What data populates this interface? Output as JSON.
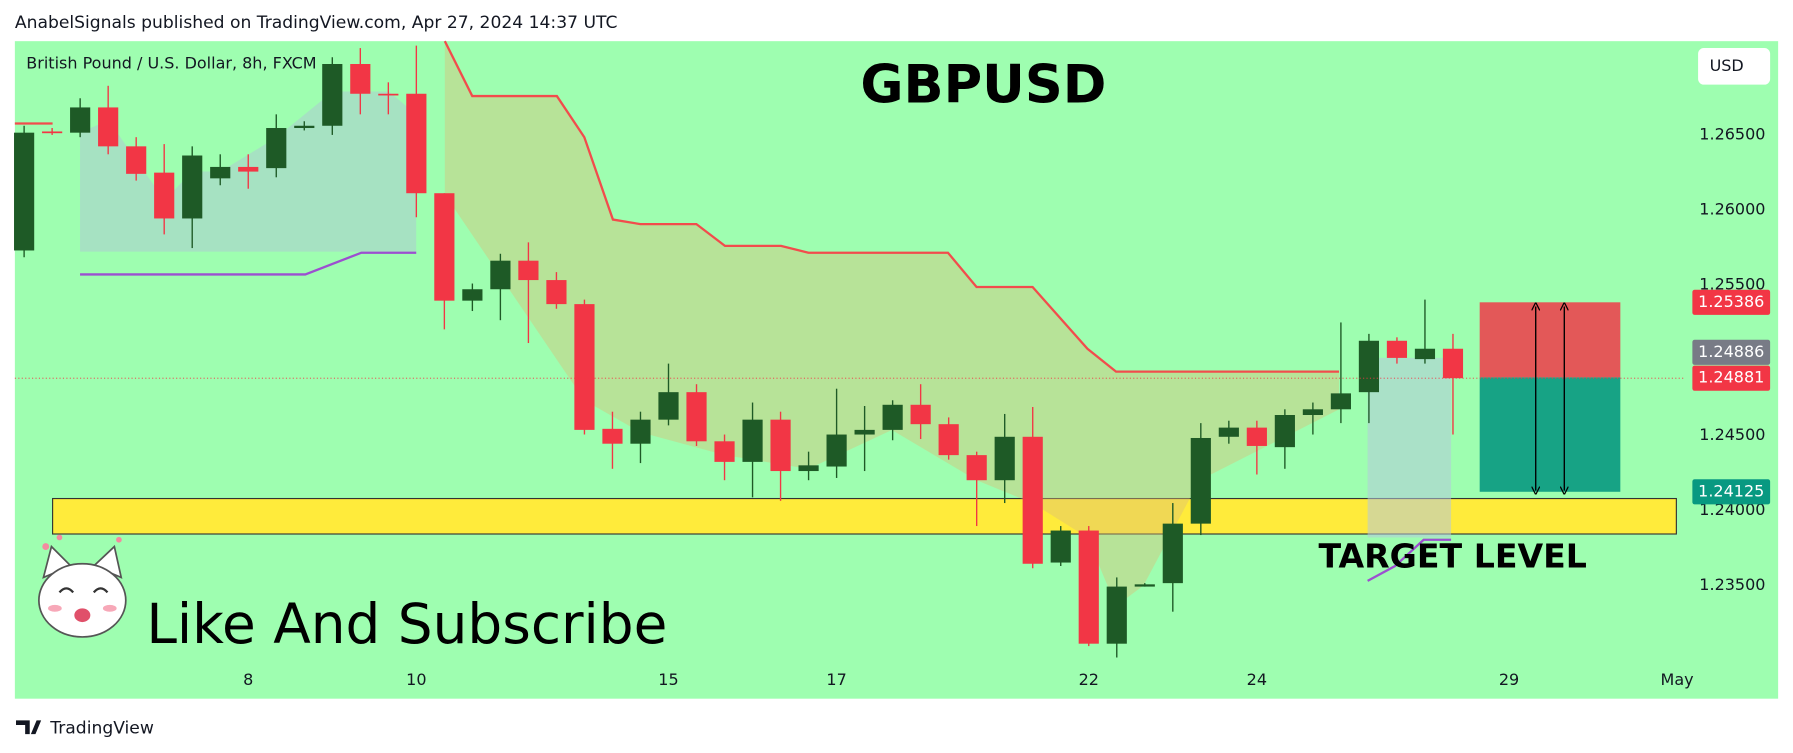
{
  "header": "AnabelSignals published on TradingView.com, Apr 27, 2024 14:37 UTC",
  "footer": "TradingView",
  "chart_data": {
    "type": "candlestick",
    "symbol": "British Pound / U.S. Dollar, 8h, FXCM",
    "title": "GBPUSD",
    "currency": "USD",
    "annotations": [
      "TARGET LEVEL",
      "Like And Subscribe"
    ],
    "up_color": "#1e5a26",
    "down_color": "#f23645",
    "open": [
      1.25731,
      1.26523,
      1.26515,
      1.26683,
      1.26424,
      1.26249,
      1.25944,
      1.26211,
      1.26287,
      1.26279,
      1.26546,
      1.26561,
      1.26972,
      1.26774,
      1.26774,
      1.26112,
      1.25397,
      1.25473,
      1.25663,
      1.25534,
      1.25374,
      1.24544,
      1.24445,
      1.24605,
      1.24788,
      1.24461,
      1.24324,
      1.24605,
      1.24263,
      1.24293,
      1.24506,
      1.24537,
      1.24704,
      1.24575,
      1.24369,
      1.24202,
      1.24491,
      1.23654,
      1.23867,
      1.23114,
      1.23494,
      1.23517,
      1.23913,
      1.24491,
      1.24552,
      1.24422,
      1.24636,
      1.24674,
      1.24788,
      1.2513,
      1.25008,
      1.25077
    ],
    "high": [
      1.26561,
      1.26546,
      1.26744,
      1.26827,
      1.26485,
      1.26439,
      1.26424,
      1.26371,
      1.26371,
      1.26637,
      1.26591,
      1.27017,
      1.27078,
      1.2685,
      1.27094,
      1.26112,
      1.25511,
      1.25709,
      1.25785,
      1.25587,
      1.25404,
      1.24658,
      1.24658,
      1.24978,
      1.24841,
      1.24506,
      1.24719,
      1.24658,
      1.24392,
      1.24811,
      1.24696,
      1.24734,
      1.24841,
      1.2462,
      1.24392,
      1.24643,
      1.24689,
      1.23897,
      1.23897,
      1.23555,
      1.23517,
      1.2405,
      1.24582,
      1.24598,
      1.24598,
      1.24674,
      1.24719,
      1.25252,
      1.25176,
      1.25153,
      1.25404,
      1.25176
    ],
    "low": [
      1.25686,
      1.265,
      1.26485,
      1.26371,
      1.26196,
      1.25838,
      1.25747,
      1.26165,
      1.26142,
      1.26218,
      1.2653,
      1.265,
      1.26637,
      1.26637,
      1.25952,
      1.25206,
      1.25328,
      1.25267,
      1.25115,
      1.25343,
      1.24506,
      1.24278,
      1.24316,
      1.24567,
      1.2443,
      1.24202,
      1.24088,
      1.24065,
      1.24202,
      1.24217,
      1.24263,
      1.24468,
      1.24476,
      1.24339,
      1.23897,
      1.2405,
      1.23616,
      1.23631,
      1.23098,
      1.23022,
      1.23494,
      1.23327,
      1.23837,
      1.24445,
      1.2424,
      1.24278,
      1.24506,
      1.24582,
      1.24582,
      1.24978,
      1.24978,
      1.24506
    ],
    "close": [
      1.26515,
      1.26515,
      1.26683,
      1.26424,
      1.26241,
      1.25944,
      1.26363,
      1.26287,
      1.26256,
      1.26546,
      1.26561,
      1.26972,
      1.26774,
      1.26766,
      1.26112,
      1.25397,
      1.25473,
      1.25663,
      1.25534,
      1.25374,
      1.24537,
      1.24445,
      1.24605,
      1.24788,
      1.24461,
      1.24324,
      1.24605,
      1.24263,
      1.24301,
      1.24506,
      1.24537,
      1.24704,
      1.24575,
      1.24369,
      1.24202,
      1.24491,
      1.23646,
      1.23867,
      1.23114,
      1.23494,
      1.23509,
      1.23913,
      1.24483,
      1.24552,
      1.2443,
      1.24636,
      1.24674,
      1.2478,
      1.2513,
      1.25016,
      1.25077,
      1.24881
    ],
    "xlim": [
      -0.33,
      59.3
    ],
    "xticks": [
      {
        "value": 8,
        "label": "8"
      },
      {
        "value": 14,
        "label": "10"
      },
      {
        "value": 23,
        "label": "15"
      },
      {
        "value": 29,
        "label": "17"
      },
      {
        "value": 38,
        "label": "22"
      },
      {
        "value": 44,
        "label": "24"
      },
      {
        "value": 53,
        "label": "29"
      },
      {
        "value": 59,
        "label": "May"
      }
    ],
    "ylim": [
      1.22748,
      1.27124
    ],
    "yticks": [
      {
        "value": 1.265,
        "label": "1.26500"
      },
      {
        "value": 1.26,
        "label": "1.26000"
      },
      {
        "value": 1.255,
        "label": "1.25500"
      },
      {
        "value": 1.245,
        "label": "1.24500"
      },
      {
        "value": 1.24,
        "label": "1.24000"
      },
      {
        "value": 1.235,
        "label": "1.23500"
      }
    ],
    "grid": false,
    "zone": [
      1.23844,
      1.2408
    ],
    "position": {
      "stop": 1.25386,
      "entry": 1.24886,
      "target": 1.24125
    }
  }
}
